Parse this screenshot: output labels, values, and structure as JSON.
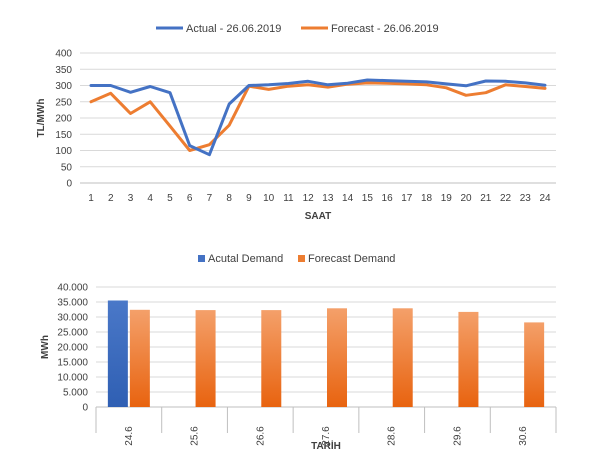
{
  "chart_data": [
    {
      "type": "line",
      "title": "",
      "xlabel": "SAAT",
      "ylabel": "TL/MWh",
      "ylim": [
        0,
        400
      ],
      "yticks": [
        "0",
        "50",
        "100",
        "150",
        "200",
        "250",
        "300",
        "350",
        "400"
      ],
      "grid": true,
      "legend": "top-center",
      "categories": [
        "1",
        "2",
        "3",
        "4",
        "5",
        "6",
        "7",
        "8",
        "9",
        "10",
        "11",
        "12",
        "13",
        "14",
        "15",
        "16",
        "17",
        "18",
        "19",
        "20",
        "21",
        "22",
        "23",
        "24"
      ],
      "series": [
        {
          "name": "Actual - 26.06.2019",
          "color": "#4472c4",
          "values": [
            300,
            300,
            279,
            297,
            278,
            115,
            87,
            243,
            300,
            302,
            306,
            313,
            302,
            307,
            317,
            315,
            313,
            311,
            305,
            299,
            314,
            313,
            308,
            301
          ]
        },
        {
          "name": "Forecast - 26.06.2019",
          "color": "#ed7d31",
          "values": [
            250,
            276,
            214,
            250,
            175,
            100,
            118,
            178,
            298,
            288,
            298,
            302,
            295,
            304,
            308,
            307,
            305,
            302,
            293,
            270,
            278,
            302,
            297,
            291
          ]
        }
      ]
    },
    {
      "type": "bar",
      "title": "",
      "xlabel": "TARİH",
      "ylabel": "MWh",
      "ylim": [
        0,
        40000
      ],
      "yticks": [
        "0",
        "5.000",
        "10.000",
        "15.000",
        "20.000",
        "25.000",
        "30.000",
        "35.000",
        "40.000"
      ],
      "grid": true,
      "legend": "top-center",
      "categories": [
        "24.6",
        "25.6",
        "26.6",
        "27.6",
        "28.6",
        "29.6",
        "30.6"
      ],
      "series": [
        {
          "name": "Acutal Demand",
          "color": "#4472c4",
          "values": [
            35500,
            null,
            null,
            null,
            null,
            null,
            null
          ]
        },
        {
          "name": "Forecast Demand",
          "color": "#ed7d31",
          "values": [
            32400,
            32300,
            32300,
            32900,
            32900,
            31700,
            28200
          ]
        }
      ]
    }
  ]
}
